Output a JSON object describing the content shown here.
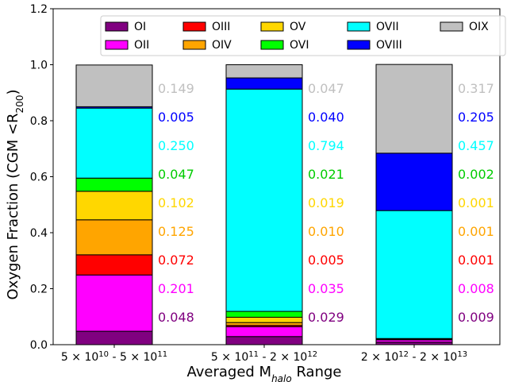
{
  "chart_data": {
    "type": "bar",
    "stacked": true,
    "ylabel": "Oxygen Fraction (CGM <R",
    "ylabel_sub": "200",
    "ylabel_end": ")",
    "xlabel": "Averaged M",
    "xlabel_sub": "halo",
    "xlabel_end": " Range",
    "ylim": [
      0,
      1.2
    ],
    "yticks": [
      "0.0",
      "0.2",
      "0.4",
      "0.6",
      "0.8",
      "1.0",
      "1.2"
    ],
    "categories": [
      {
        "base1": "5 × 10",
        "exp1": "10",
        "base2": " - 5 × 10",
        "exp2": "11"
      },
      {
        "base1": "5 × 10",
        "exp1": "11",
        "base2": " - 2 × 10",
        "exp2": "12"
      },
      {
        "base1": "2 × 10",
        "exp1": "12",
        "base2": " - 2 × 10",
        "exp2": "13"
      }
    ],
    "legend_position": "top",
    "series": [
      {
        "name": "OI",
        "color": "#800080",
        "values": [
          0.048,
          0.029,
          0.009
        ]
      },
      {
        "name": "OII",
        "color": "#ff00ff",
        "values": [
          0.201,
          0.035,
          0.008
        ]
      },
      {
        "name": "OIII",
        "color": "#ff0000",
        "values": [
          0.072,
          0.005,
          0.001
        ]
      },
      {
        "name": "OIV",
        "color": "#ffa500",
        "values": [
          0.125,
          0.01,
          0.001
        ]
      },
      {
        "name": "OV",
        "color": "#ffd700",
        "values": [
          0.102,
          0.019,
          0.001
        ]
      },
      {
        "name": "OVI",
        "color": "#00ff00",
        "values": [
          0.047,
          0.021,
          0.002
        ]
      },
      {
        "name": "OVII",
        "color": "#00ffff",
        "values": [
          0.25,
          0.794,
          0.457
        ]
      },
      {
        "name": "OVIII",
        "color": "#0000ff",
        "values": [
          0.005,
          0.04,
          0.205
        ]
      },
      {
        "name": "OIX",
        "color": "#c0c0c0",
        "values": [
          0.149,
          0.047,
          0.317
        ]
      }
    ],
    "value_labels": [
      [
        "0.048",
        "0.201",
        "0.072",
        "0.125",
        "0.102",
        "0.047",
        "0.250",
        "0.005",
        "0.149"
      ],
      [
        "0.029",
        "0.035",
        "0.005",
        "0.010",
        "0.019",
        "0.021",
        "0.794",
        "0.040",
        "0.047"
      ],
      [
        "0.009",
        "0.008",
        "0.001",
        "0.001",
        "0.001",
        "0.002",
        "0.457",
        "0.205",
        "0.317"
      ]
    ],
    "label_colors": [
      "#800080",
      "#ff00ff",
      "#ff0000",
      "#ffa500",
      "#ffd700",
      "#00cc00",
      "#00ffff",
      "#0000ff",
      "#c0c0c0"
    ]
  }
}
